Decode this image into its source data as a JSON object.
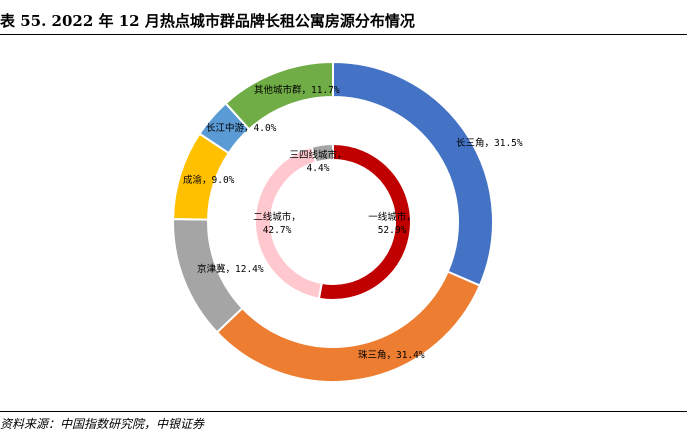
{
  "title": "表 55. 2022 年 12 月热点城市群品牌长租公寓房源分布情况",
  "source": "资料来源：中国指数研究院，中银证券",
  "chart_data": {
    "type": "pie",
    "title": "",
    "rings": [
      {
        "ring": "outer",
        "slices": [
          {
            "name": "长三角",
            "value": 31.5,
            "label": "长三角，31.5%",
            "color": "#4472C4"
          },
          {
            "name": "珠三角",
            "value": 31.4,
            "label": "珠三角，31.4%",
            "color": "#ED7D31"
          },
          {
            "name": "京津冀",
            "value": 12.4,
            "label": "京津冀，12.4%",
            "color": "#A5A5A5"
          },
          {
            "name": "成渝",
            "value": 9.0,
            "label": "成渝，9.0%",
            "color": "#FFC000"
          },
          {
            "name": "长江中游",
            "value": 4.0,
            "label": "长江中游，4.0%",
            "color": "#5B9BD5"
          },
          {
            "name": "其他城市群",
            "value": 11.7,
            "label": "其他城市群，11.7%",
            "color": "#70AD47"
          }
        ]
      },
      {
        "ring": "inner",
        "slices": [
          {
            "name": "一线城市",
            "value": 52.9,
            "label_line1": "一线城市，",
            "label_line2": "52.9%",
            "color": "#C00000"
          },
          {
            "name": "二线城市",
            "value": 42.7,
            "label_line1": "二线城市，",
            "label_line2": "42.7%",
            "color": "#FFC7CE"
          },
          {
            "name": "三四线城市",
            "value": 4.4,
            "label_line1": "三四线城市，",
            "label_line2": "4.4%",
            "color": "#A5A5A5"
          }
        ]
      }
    ]
  }
}
